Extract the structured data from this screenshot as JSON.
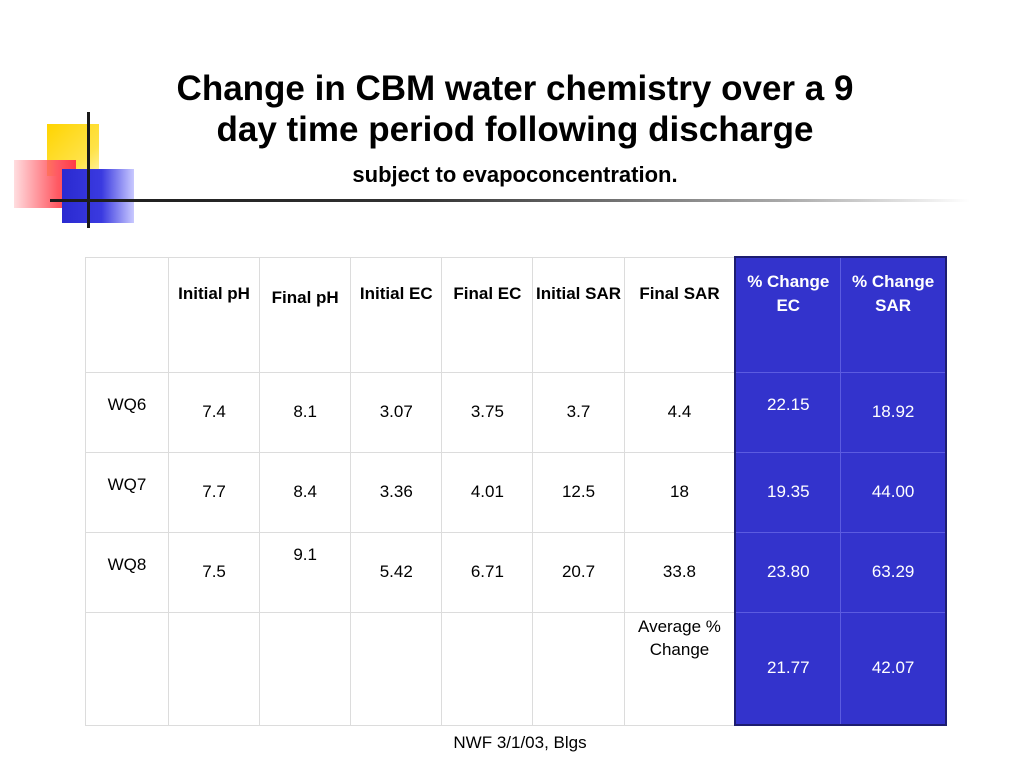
{
  "title_line1": "Change in CBM water chemistry over a 9",
  "title_line2": "day time period following discharge",
  "subtitle": "subject to evapoconcentration.",
  "table": {
    "headers": [
      "",
      "Initial pH",
      "Final pH",
      "Initial EC",
      "Final EC",
      "Initial SAR",
      "Final SAR",
      "% Change EC",
      "% Change SAR"
    ],
    "rows": [
      [
        "WQ6",
        "7.4",
        "8.1",
        "3.07",
        "3.75",
        "3.7",
        "4.4",
        "22.15",
        "18.92"
      ],
      [
        "WQ7",
        "7.7",
        "8.4",
        "3.36",
        "4.01",
        "12.5",
        "18",
        "19.35",
        "44.00"
      ],
      [
        "WQ8",
        "7.5",
        "9.1",
        "5.42",
        "6.71",
        "20.7",
        "33.8",
        "23.80",
        "63.29"
      ]
    ],
    "average_label": "Average % Change",
    "average_ec": "21.77",
    "average_sar": "42.07"
  },
  "footer": "NWF 3/1/03, Blgs",
  "colors": {
    "highlight_columns": "#3333cc",
    "deco_yellow": "#ffd400",
    "deco_red": "#ff5a64",
    "deco_blue": "#2a2ad0"
  }
}
